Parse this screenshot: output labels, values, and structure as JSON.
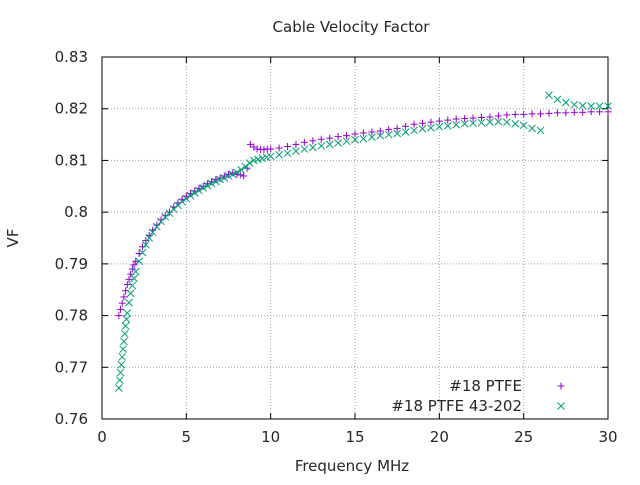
{
  "chart_data": {
    "type": "scatter",
    "title": "Cable Velocity Factor",
    "xlabel": "Frequency MHz",
    "ylabel": "VF",
    "xlim": [
      0,
      30
    ],
    "ylim": [
      0.76,
      0.83
    ],
    "xticks": [
      "0",
      "5",
      "10",
      "15",
      "20",
      "25",
      "30"
    ],
    "yticks": [
      "0.76",
      "0.77",
      "0.78",
      "0.79",
      "0.8",
      "0.81",
      "0.82",
      "0.83"
    ],
    "grid": true,
    "legend_position": "bottom-right",
    "series": [
      {
        "name": "#18 PTFE",
        "marker": "plus",
        "color": "#9400D3",
        "x": [
          1.0,
          1.1,
          1.2,
          1.3,
          1.4,
          1.5,
          1.6,
          1.7,
          1.8,
          1.9,
          2.0,
          2.2,
          2.4,
          2.6,
          2.8,
          3.0,
          3.25,
          3.5,
          3.75,
          4.0,
          4.25,
          4.5,
          4.75,
          5.0,
          5.25,
          5.5,
          5.75,
          6.0,
          6.25,
          6.5,
          6.75,
          7.0,
          7.25,
          7.5,
          7.75,
          8.0,
          8.2,
          8.4,
          8.6,
          8.8,
          9.0,
          9.2,
          9.4,
          9.6,
          9.8,
          10.0,
          10.5,
          11.0,
          11.5,
          12.0,
          12.5,
          13.0,
          13.5,
          14.0,
          14.5,
          15.0,
          15.5,
          16.0,
          16.5,
          17.0,
          17.5,
          18.0,
          18.5,
          19.0,
          19.5,
          20.0,
          20.5,
          21.0,
          21.5,
          22.0,
          22.5,
          23.0,
          23.5,
          24.0,
          24.5,
          25.0,
          25.5,
          26.0,
          26.5,
          27.0,
          27.5,
          28.0,
          28.5,
          29.0,
          29.5,
          30.0
        ],
        "y": [
          0.78,
          0.7812,
          0.7824,
          0.7836,
          0.7848,
          0.786,
          0.787,
          0.788,
          0.789,
          0.7898,
          0.7905,
          0.792,
          0.7933,
          0.7945,
          0.7955,
          0.7965,
          0.7975,
          0.7985,
          0.7993,
          0.8,
          0.801,
          0.8018,
          0.8025,
          0.8031,
          0.8036,
          0.8041,
          0.8046,
          0.805,
          0.8055,
          0.8059,
          0.8063,
          0.8066,
          0.807,
          0.8073,
          0.8076,
          0.8073,
          0.8072,
          0.807,
          0.8085,
          0.8131,
          0.8126,
          0.8122,
          0.8121,
          0.8121,
          0.8122,
          0.8122,
          0.8124,
          0.8127,
          0.8131,
          0.8135,
          0.8138,
          0.8141,
          0.8143,
          0.8146,
          0.8148,
          0.8151,
          0.8153,
          0.8155,
          0.8157,
          0.816,
          0.8162,
          0.8166,
          0.817,
          0.8172,
          0.8174,
          0.8176,
          0.8178,
          0.818,
          0.8181,
          0.8182,
          0.8183,
          0.8184,
          0.8186,
          0.8188,
          0.8189,
          0.8189,
          0.819,
          0.819,
          0.8191,
          0.8192,
          0.8192,
          0.8193,
          0.8193,
          0.8194,
          0.8194,
          0.8194
        ]
      },
      {
        "name": "#18 PTFE 43-202",
        "marker": "cross",
        "color": "#009E73",
        "x": [
          1.0,
          1.05,
          1.1,
          1.15,
          1.2,
          1.25,
          1.3,
          1.35,
          1.4,
          1.45,
          1.5,
          1.6,
          1.7,
          1.8,
          1.9,
          2.0,
          2.2,
          2.4,
          2.6,
          2.8,
          3.0,
          3.25,
          3.5,
          3.75,
          4.0,
          4.25,
          4.5,
          4.75,
          5.0,
          5.25,
          5.5,
          5.75,
          6.0,
          6.25,
          6.5,
          6.75,
          7.0,
          7.25,
          7.5,
          7.75,
          8.0,
          8.25,
          8.5,
          8.75,
          9.0,
          9.25,
          9.5,
          9.75,
          10.0,
          10.5,
          11.0,
          11.5,
          12.0,
          12.5,
          13.0,
          13.5,
          14.0,
          14.5,
          15.0,
          15.5,
          16.0,
          16.5,
          17.0,
          17.5,
          18.0,
          18.5,
          19.0,
          19.5,
          20.0,
          20.5,
          21.0,
          21.5,
          22.0,
          22.5,
          23.0,
          23.5,
          24.0,
          24.5,
          25.0,
          25.5,
          26.0,
          26.5,
          27.0,
          27.5,
          28.0,
          28.5,
          29.0,
          29.5,
          30.0
        ],
        "y": [
          0.766,
          0.7675,
          0.769,
          0.7705,
          0.772,
          0.7735,
          0.775,
          0.7765,
          0.778,
          0.7793,
          0.7805,
          0.7825,
          0.7843,
          0.7858,
          0.7872,
          0.7885,
          0.7905,
          0.7922,
          0.7937,
          0.795,
          0.7961,
          0.7972,
          0.7982,
          0.7991,
          0.7998,
          0.8006,
          0.8013,
          0.802,
          0.8026,
          0.8032,
          0.8037,
          0.8042,
          0.8047,
          0.8051,
          0.8055,
          0.8059,
          0.8063,
          0.8066,
          0.807,
          0.8073,
          0.8077,
          0.8082,
          0.8088,
          0.8095,
          0.81,
          0.8102,
          0.8104,
          0.8106,
          0.8108,
          0.8111,
          0.8114,
          0.8118,
          0.8122,
          0.8125,
          0.8128,
          0.8131,
          0.8134,
          0.8137,
          0.814,
          0.8142,
          0.8145,
          0.8148,
          0.815,
          0.8152,
          0.8155,
          0.8158,
          0.8161,
          0.8163,
          0.8165,
          0.8167,
          0.8169,
          0.8171,
          0.8172,
          0.8173,
          0.8174,
          0.8175,
          0.8174,
          0.8171,
          0.8168,
          0.8162,
          0.8158,
          0.8226,
          0.8218,
          0.8212,
          0.8208,
          0.8206,
          0.8205,
          0.8205,
          0.8205
        ]
      }
    ]
  }
}
